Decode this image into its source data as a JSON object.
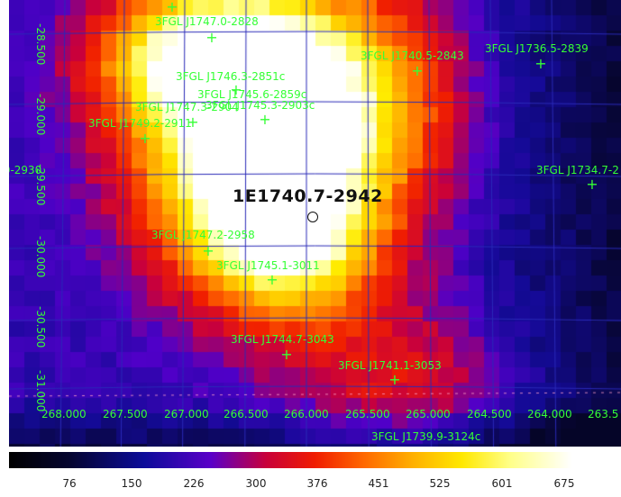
{
  "target": {
    "name": "1E1740.7-2942"
  },
  "sources": [
    {
      "label": "3FGL J1747.0-2828"
    },
    {
      "label": "3FGL J1746.3-2851c"
    },
    {
      "label": "3FGL J1745.6-2859c"
    },
    {
      "label": "3FGL J1747.3-2904"
    },
    {
      "label": "3FGL J1745.3-2903c"
    },
    {
      "label": "3FGL J1749.2-2911"
    },
    {
      "label": "3FGL J1740.5-2843"
    },
    {
      "label": "3FGL J1736.5-2839"
    },
    {
      "label": "3FGL J1734.7-2"
    },
    {
      "label": "3FGL J1747.2-2958"
    },
    {
      "label": "3FGL J1745.1-3011"
    },
    {
      "label": "3FGL J1744.7-3043"
    },
    {
      "label": "3FGL J1741.1-3053"
    },
    {
      "label": "3FGL J1739.9-3124c"
    },
    {
      "label": ".0-2930"
    }
  ],
  "ra_ticks": [
    "268.000",
    "267.500",
    "267.000",
    "266.500",
    "266.000",
    "265.500",
    "265.000",
    "264.500",
    "264.000",
    "263.5"
  ],
  "dec_ticks": [
    "-28.500",
    "-29.000",
    "-29.500",
    "-30.000",
    "-30.500",
    "-31.000"
  ],
  "colorbar": {
    "ticks": [
      "76",
      "150",
      "226",
      "300",
      "376",
      "451",
      "525",
      "601",
      "675"
    ],
    "colors": [
      "#000000",
      "#0c0c99",
      "#c8003a",
      "#ff6800",
      "#ffe800",
      "#ffffff"
    ]
  },
  "colors": {
    "label": "#35ff35",
    "grid": "#2a2ab8",
    "target": "#111111"
  }
}
